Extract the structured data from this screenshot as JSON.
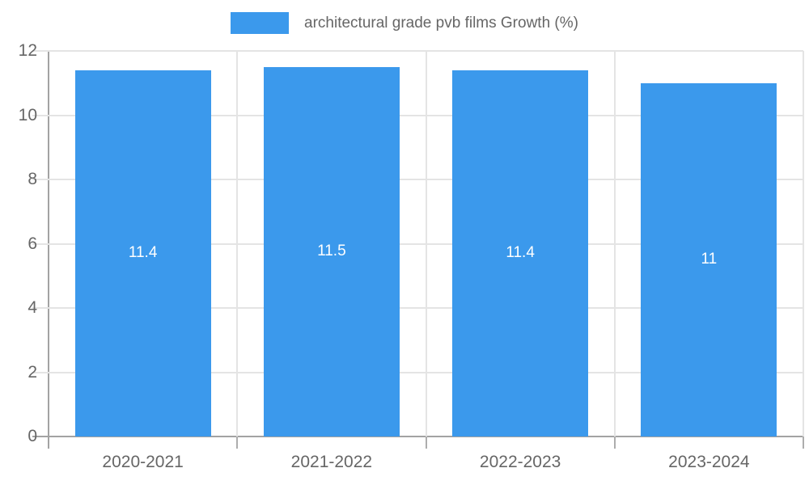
{
  "chart_data": {
    "type": "bar",
    "title": "",
    "legend": {
      "position": "top-center",
      "entries": [
        {
          "label": "architectural grade pvb films Growth (%)",
          "color": "#3B99EC"
        }
      ]
    },
    "categories": [
      "2020-2021",
      "2021-2022",
      "2022-2023",
      "2023-2024"
    ],
    "series": [
      {
        "name": "architectural grade pvb films Growth (%)",
        "values": [
          11.4,
          11.5,
          11.4,
          11
        ],
        "value_labels": [
          "11.4",
          "11.5",
          "11.4",
          "11"
        ]
      }
    ],
    "xlabel": "",
    "ylabel": "",
    "ylim": [
      0,
      12
    ],
    "yticks": [
      0,
      2,
      4,
      6,
      8,
      10,
      12
    ],
    "grid": "on",
    "colors": {
      "bar": "#3B99EC",
      "gridline": "#E4E4E4",
      "axis_line": "#A3A3A3",
      "tick_mark": "#ADADAD",
      "tick_label": "#666666",
      "value_label": "#FFFFFF"
    }
  }
}
